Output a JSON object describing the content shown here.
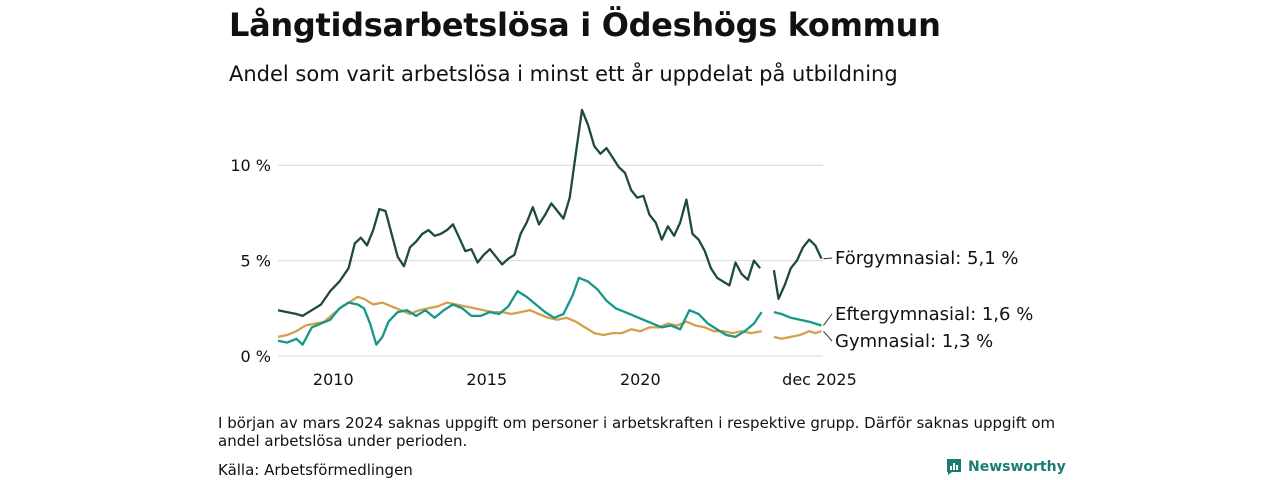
{
  "header": {
    "title": "Långtidsarbetslösa i Ödeshögs kommun",
    "subtitle": "Andel som varit arbetslösa i minst ett år uppdelat på utbildning"
  },
  "footer": {
    "note": "I början av mars 2024 saknas uppgift om personer i arbetskraften i respektive grupp. Därför saknas uppgift om andel arbetslösa under perioden.",
    "source": "Källa: Arbetsförmedlingen",
    "brand": "Newsworthy"
  },
  "colors": {
    "forgymnasial": "#1f4a3f",
    "eftergymnasial": "#17968a",
    "gymnasial": "#d4a04a",
    "grid": "#d9d9d9",
    "brand": "#1a7d73"
  },
  "chart_data": {
    "type": "line",
    "title": "Långtidsarbetslösa i Ödeshögs kommun",
    "xlabel": "",
    "ylabel": "",
    "xlim": [
      2008.2,
      2025.95
    ],
    "ylim": [
      0,
      13
    ],
    "yticks": [
      {
        "value": 0,
        "label": "0 %"
      },
      {
        "value": 5,
        "label": "5 %"
      },
      {
        "value": 10,
        "label": "10 %"
      }
    ],
    "xticks": [
      {
        "value": 2010,
        "label": "2010"
      },
      {
        "value": 2015,
        "label": "2015"
      },
      {
        "value": 2020,
        "label": "2020"
      },
      {
        "value": 2025.9,
        "label": "dec 2025"
      }
    ],
    "gap": [
      2024.05,
      2024.35
    ],
    "series": [
      {
        "name": "Förgymnasial",
        "label": "Förgymnasial: 5,1 %",
        "color": "forgymnasial",
        "points": [
          [
            2008.2,
            2.4
          ],
          [
            2008.5,
            2.3
          ],
          [
            2008.8,
            2.2
          ],
          [
            2009.0,
            2.1
          ],
          [
            2009.3,
            2.4
          ],
          [
            2009.6,
            2.7
          ],
          [
            2009.9,
            3.4
          ],
          [
            2010.2,
            3.9
          ],
          [
            2010.5,
            4.6
          ],
          [
            2010.7,
            5.9
          ],
          [
            2010.9,
            6.2
          ],
          [
            2011.1,
            5.8
          ],
          [
            2011.3,
            6.6
          ],
          [
            2011.5,
            7.7
          ],
          [
            2011.7,
            7.6
          ],
          [
            2011.9,
            6.4
          ],
          [
            2012.1,
            5.2
          ],
          [
            2012.3,
            4.7
          ],
          [
            2012.5,
            5.7
          ],
          [
            2012.7,
            6.0
          ],
          [
            2012.9,
            6.4
          ],
          [
            2013.1,
            6.6
          ],
          [
            2013.3,
            6.3
          ],
          [
            2013.5,
            6.4
          ],
          [
            2013.7,
            6.6
          ],
          [
            2013.9,
            6.9
          ],
          [
            2014.1,
            6.2
          ],
          [
            2014.3,
            5.5
          ],
          [
            2014.5,
            5.6
          ],
          [
            2014.7,
            4.9
          ],
          [
            2014.9,
            5.3
          ],
          [
            2015.1,
            5.6
          ],
          [
            2015.3,
            5.2
          ],
          [
            2015.5,
            4.8
          ],
          [
            2015.7,
            5.1
          ],
          [
            2015.9,
            5.3
          ],
          [
            2016.1,
            6.4
          ],
          [
            2016.3,
            7.0
          ],
          [
            2016.5,
            7.8
          ],
          [
            2016.7,
            6.9
          ],
          [
            2016.9,
            7.4
          ],
          [
            2017.1,
            8.0
          ],
          [
            2017.3,
            7.6
          ],
          [
            2017.5,
            7.2
          ],
          [
            2017.7,
            8.3
          ],
          [
            2017.9,
            10.6
          ],
          [
            2018.1,
            12.9
          ],
          [
            2018.3,
            12.1
          ],
          [
            2018.5,
            11.0
          ],
          [
            2018.7,
            10.6
          ],
          [
            2018.9,
            10.9
          ],
          [
            2019.1,
            10.4
          ],
          [
            2019.3,
            9.9
          ],
          [
            2019.5,
            9.6
          ],
          [
            2019.7,
            8.7
          ],
          [
            2019.9,
            8.3
          ],
          [
            2020.1,
            8.4
          ],
          [
            2020.3,
            7.4
          ],
          [
            2020.5,
            7.0
          ],
          [
            2020.7,
            6.1
          ],
          [
            2020.9,
            6.8
          ],
          [
            2021.1,
            6.3
          ],
          [
            2021.3,
            7.0
          ],
          [
            2021.5,
            8.2
          ],
          [
            2021.7,
            6.4
          ],
          [
            2021.9,
            6.1
          ],
          [
            2022.1,
            5.5
          ],
          [
            2022.3,
            4.6
          ],
          [
            2022.5,
            4.1
          ],
          [
            2022.7,
            3.9
          ],
          [
            2022.9,
            3.7
          ],
          [
            2023.1,
            4.9
          ],
          [
            2023.3,
            4.3
          ],
          [
            2023.5,
            4.0
          ],
          [
            2023.7,
            5.0
          ],
          [
            2023.9,
            4.6
          ],
          [
            2024.35,
            4.5
          ],
          [
            2024.5,
            3.0
          ],
          [
            2024.7,
            3.7
          ],
          [
            2024.9,
            4.6
          ],
          [
            2025.1,
            5.0
          ],
          [
            2025.3,
            5.7
          ],
          [
            2025.5,
            6.1
          ],
          [
            2025.7,
            5.8
          ],
          [
            2025.9,
            5.1
          ]
        ]
      },
      {
        "name": "Eftergymnasial",
        "label": "Eftergymnasial: 1,6 %",
        "color": "eftergymnasial",
        "points": [
          [
            2008.2,
            0.8
          ],
          [
            2008.5,
            0.7
          ],
          [
            2008.8,
            0.9
          ],
          [
            2009.0,
            0.6
          ],
          [
            2009.3,
            1.5
          ],
          [
            2009.6,
            1.7
          ],
          [
            2009.9,
            1.9
          ],
          [
            2010.2,
            2.5
          ],
          [
            2010.5,
            2.8
          ],
          [
            2010.8,
            2.7
          ],
          [
            2011.0,
            2.5
          ],
          [
            2011.2,
            1.7
          ],
          [
            2011.4,
            0.6
          ],
          [
            2011.6,
            1.0
          ],
          [
            2011.8,
            1.8
          ],
          [
            2012.1,
            2.3
          ],
          [
            2012.4,
            2.4
          ],
          [
            2012.7,
            2.1
          ],
          [
            2013.0,
            2.4
          ],
          [
            2013.3,
            2.0
          ],
          [
            2013.6,
            2.4
          ],
          [
            2013.9,
            2.7
          ],
          [
            2014.2,
            2.5
          ],
          [
            2014.5,
            2.1
          ],
          [
            2014.8,
            2.1
          ],
          [
            2015.1,
            2.3
          ],
          [
            2015.4,
            2.2
          ],
          [
            2015.7,
            2.6
          ],
          [
            2016.0,
            3.4
          ],
          [
            2016.3,
            3.1
          ],
          [
            2016.6,
            2.7
          ],
          [
            2016.9,
            2.3
          ],
          [
            2017.2,
            2.0
          ],
          [
            2017.5,
            2.2
          ],
          [
            2017.8,
            3.2
          ],
          [
            2018.0,
            4.1
          ],
          [
            2018.3,
            3.9
          ],
          [
            2018.6,
            3.5
          ],
          [
            2018.9,
            2.9
          ],
          [
            2019.2,
            2.5
          ],
          [
            2019.5,
            2.3
          ],
          [
            2019.8,
            2.1
          ],
          [
            2020.1,
            1.9
          ],
          [
            2020.4,
            1.7
          ],
          [
            2020.7,
            1.5
          ],
          [
            2021.0,
            1.6
          ],
          [
            2021.3,
            1.4
          ],
          [
            2021.6,
            2.4
          ],
          [
            2021.9,
            2.2
          ],
          [
            2022.2,
            1.7
          ],
          [
            2022.5,
            1.4
          ],
          [
            2022.8,
            1.1
          ],
          [
            2023.1,
            1.0
          ],
          [
            2023.4,
            1.3
          ],
          [
            2023.7,
            1.7
          ],
          [
            2023.95,
            2.3
          ],
          [
            2024.35,
            2.3
          ],
          [
            2024.6,
            2.2
          ],
          [
            2024.9,
            2.0
          ],
          [
            2025.2,
            1.9
          ],
          [
            2025.5,
            1.8
          ],
          [
            2025.7,
            1.7
          ],
          [
            2025.9,
            1.6
          ]
        ]
      },
      {
        "name": "Gymnasial",
        "label": "Gymnasial: 1,3 %",
        "color": "gymnasial",
        "points": [
          [
            2008.2,
            1.0
          ],
          [
            2008.5,
            1.1
          ],
          [
            2008.8,
            1.3
          ],
          [
            2009.1,
            1.6
          ],
          [
            2009.4,
            1.7
          ],
          [
            2009.7,
            1.8
          ],
          [
            2010.0,
            2.2
          ],
          [
            2010.3,
            2.6
          ],
          [
            2010.6,
            2.9
          ],
          [
            2010.8,
            3.1
          ],
          [
            2011.0,
            3.0
          ],
          [
            2011.3,
            2.7
          ],
          [
            2011.6,
            2.8
          ],
          [
            2011.9,
            2.6
          ],
          [
            2012.2,
            2.4
          ],
          [
            2012.5,
            2.2
          ],
          [
            2012.8,
            2.4
          ],
          [
            2013.1,
            2.5
          ],
          [
            2013.4,
            2.6
          ],
          [
            2013.7,
            2.8
          ],
          [
            2014.0,
            2.7
          ],
          [
            2014.3,
            2.6
          ],
          [
            2014.6,
            2.5
          ],
          [
            2014.9,
            2.4
          ],
          [
            2015.2,
            2.3
          ],
          [
            2015.5,
            2.3
          ],
          [
            2015.8,
            2.2
          ],
          [
            2016.1,
            2.3
          ],
          [
            2016.4,
            2.4
          ],
          [
            2016.7,
            2.2
          ],
          [
            2017.0,
            2.0
          ],
          [
            2017.3,
            1.9
          ],
          [
            2017.6,
            2.0
          ],
          [
            2017.9,
            1.8
          ],
          [
            2018.2,
            1.5
          ],
          [
            2018.5,
            1.2
          ],
          [
            2018.8,
            1.1
          ],
          [
            2019.1,
            1.2
          ],
          [
            2019.4,
            1.2
          ],
          [
            2019.7,
            1.4
          ],
          [
            2020.0,
            1.3
          ],
          [
            2020.3,
            1.5
          ],
          [
            2020.6,
            1.5
          ],
          [
            2020.9,
            1.7
          ],
          [
            2021.2,
            1.6
          ],
          [
            2021.5,
            1.8
          ],
          [
            2021.8,
            1.6
          ],
          [
            2022.1,
            1.5
          ],
          [
            2022.4,
            1.3
          ],
          [
            2022.7,
            1.3
          ],
          [
            2023.0,
            1.2
          ],
          [
            2023.3,
            1.3
          ],
          [
            2023.6,
            1.2
          ],
          [
            2023.95,
            1.3
          ],
          [
            2024.35,
            1.0
          ],
          [
            2024.6,
            0.9
          ],
          [
            2024.9,
            1.0
          ],
          [
            2025.2,
            1.1
          ],
          [
            2025.5,
            1.3
          ],
          [
            2025.7,
            1.2
          ],
          [
            2025.9,
            1.3
          ]
        ]
      }
    ]
  }
}
